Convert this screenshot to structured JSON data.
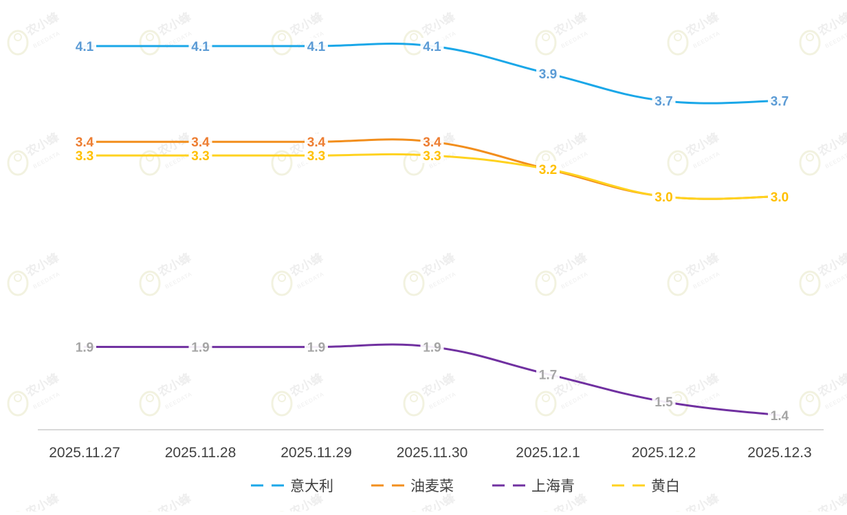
{
  "chart_data": {
    "type": "line",
    "title": "",
    "xlabel": "",
    "ylabel": "",
    "categories": [
      "2025.11.27",
      "2025.11.28",
      "2025.11.29",
      "2025.11.30",
      "2025.12.1",
      "2025.12.2",
      "2025.12.3"
    ],
    "series": [
      {
        "name": "意大利",
        "color": "#1aa7e8",
        "label_color": "#5b9bd5",
        "values": [
          4.1,
          4.1,
          4.1,
          4.1,
          3.9,
          3.7,
          3.7
        ]
      },
      {
        "name": "油麦菜",
        "color": "#f28e1c",
        "label_color": "#ed7d31",
        "values": [
          3.4,
          3.4,
          3.4,
          3.4,
          3.2,
          3.0,
          3.0
        ]
      },
      {
        "name": "上海青",
        "color": "#7030a0",
        "label_color": "#a5a5a5",
        "values": [
          1.9,
          1.9,
          1.9,
          1.9,
          1.7,
          1.5,
          1.4
        ]
      },
      {
        "name": "黄白",
        "color": "#ffd21f",
        "label_color": "#ffc000",
        "values": [
          3.3,
          3.3,
          3.3,
          3.3,
          3.2,
          3.0,
          3.0
        ]
      }
    ],
    "ylim": [
      1.3,
      4.3
    ],
    "grid": false,
    "legend_position": "bottom",
    "axis_color": "#d9d9d9",
    "tick_label_color": "#404040"
  },
  "watermark": {
    "text": "农小蜂",
    "sub": "BEEDATA"
  }
}
